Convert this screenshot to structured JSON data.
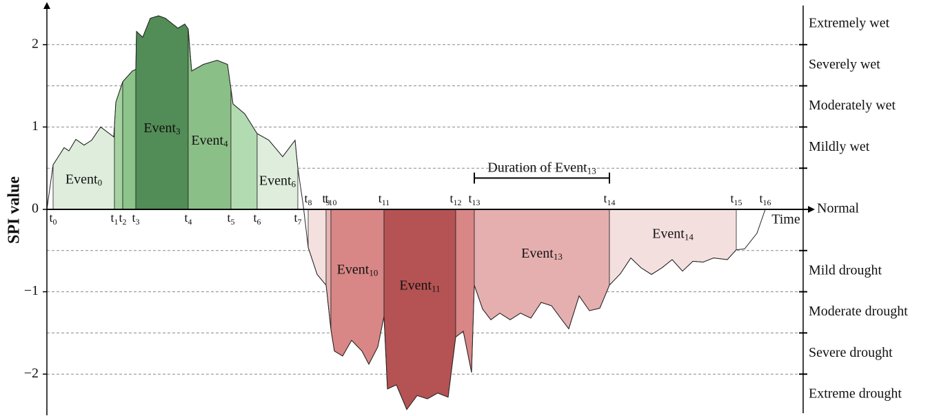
{
  "chart_data": {
    "type": "area",
    "y_label": "SPI value",
    "x_label": "Time",
    "xlim": [
      0,
      110
    ],
    "ylim": [
      -2.5,
      2.5
    ],
    "yticks": [
      {
        "value": -2,
        "label": "−2"
      },
      {
        "value": -1,
        "label": "−1"
      },
      0,
      1,
      2
    ],
    "class_bounds": [
      -2,
      -1.5,
      -1,
      -0.5,
      0.5,
      1,
      1.5,
      2
    ],
    "classes": [
      {
        "name": "Extremely wet",
        "min": 2,
        "max": 2.5
      },
      {
        "name": "Severely wet",
        "min": 1.5,
        "max": 2
      },
      {
        "name": "Moderately wet",
        "min": 1,
        "max": 1.5
      },
      {
        "name": "Mildly wet",
        "min": 0.5,
        "max": 1
      },
      {
        "name": "Normal",
        "min": -0.5,
        "max": 0.5
      },
      {
        "name": "Mild drought",
        "min": -1,
        "max": -0.5
      },
      {
        "name": "Moderate drought",
        "min": -1.5,
        "max": -1
      },
      {
        "name": "Severe drought",
        "min": -2,
        "max": -1.5
      },
      {
        "name": "Extreme drought",
        "min": -2.5,
        "max": -2
      }
    ],
    "curve": {
      "x": [
        0,
        0.9,
        2.5,
        3.2,
        4.2,
        5.4,
        6.5,
        7.8,
        9.7,
        10,
        11,
        12.4,
        12.9,
        13,
        13.9,
        15,
        16.2,
        17.2,
        19,
        20,
        20.5,
        21,
        22.7,
        24.7,
        26.2,
        27,
        28.7,
        30.5,
        32.2,
        34.2,
        36,
        36.4,
        37.2,
        37.9,
        39.2,
        40.5,
        41.2,
        41.7,
        42.9,
        44.2,
        45.7,
        46.7,
        48,
        48.9,
        49.4,
        50.7,
        52.2,
        53.7,
        55.2,
        56.7,
        58.2,
        59.3,
        60.4,
        61.6,
        62,
        63.2,
        64.4,
        65.7,
        67.2,
        68.7,
        70.2,
        71.7,
        73.2,
        74.7,
        75.7,
        77.2,
        78.7,
        80.2,
        81.6,
        83.2,
        84.7,
        86.2,
        87.7,
        89.2,
        90.7,
        92.2,
        93.7,
        95.2,
        96.7,
        98.7,
        100,
        101.2,
        103,
        104.2
      ],
      "y": [
        0,
        0.54,
        0.75,
        0.71,
        0.85,
        0.78,
        0.84,
        1.0,
        0.88,
        1.3,
        1.55,
        1.68,
        1.7,
        2.16,
        2.09,
        2.32,
        2.35,
        2.32,
        2.2,
        2.25,
        2.19,
        1.68,
        1.76,
        1.81,
        1.76,
        1.28,
        1.16,
        0.92,
        0.84,
        0.64,
        0.84,
        0.5,
        0.04,
        -0.46,
        -0.79,
        -0.92,
        -1.46,
        -1.72,
        -1.78,
        -1.59,
        -1.72,
        -1.88,
        -1.67,
        -1.3,
        -2.18,
        -2.13,
        -2.43,
        -2.26,
        -2.3,
        -2.23,
        -2.28,
        -1.55,
        -1.48,
        -1.98,
        -0.92,
        -1.21,
        -1.34,
        -1.26,
        -1.34,
        -1.26,
        -1.32,
        -1.13,
        -1.17,
        -1.34,
        -1.45,
        -1.05,
        -1.23,
        -1.2,
        -0.92,
        -0.78,
        -0.59,
        -0.71,
        -0.79,
        -0.71,
        -0.61,
        -0.75,
        -0.63,
        -0.64,
        -0.59,
        -0.61,
        -0.49,
        -0.48,
        -0.29,
        0
      ]
    },
    "times": [
      {
        "symbol": "t",
        "sub": 0,
        "x": 0.9
      },
      {
        "symbol": "t",
        "sub": 1,
        "x": 9.8
      },
      {
        "symbol": "t",
        "sub": 2,
        "x": 11
      },
      {
        "symbol": "t",
        "sub": 3,
        "x": 12.9
      },
      {
        "symbol": "t",
        "sub": 4,
        "x": 20.5
      },
      {
        "symbol": "t",
        "sub": 5,
        "x": 26.7
      },
      {
        "symbol": "t",
        "sub": 6,
        "x": 30.5
      },
      {
        "symbol": "t",
        "sub": 7,
        "x": 36.4
      },
      {
        "symbol": "t",
        "sub": 8,
        "x": 37.9
      },
      {
        "symbol": "t",
        "sub": 9,
        "x": 40.5
      },
      {
        "symbol": "t",
        "sub": 10,
        "x": 41.2
      },
      {
        "symbol": "t",
        "sub": 11,
        "x": 48.9
      },
      {
        "symbol": "t",
        "sub": 12,
        "x": 59.3
      },
      {
        "symbol": "t",
        "sub": 13,
        "x": 62
      },
      {
        "symbol": "t",
        "sub": 14,
        "x": 81.6
      },
      {
        "symbol": "t",
        "sub": 15,
        "x": 100
      },
      {
        "symbol": "t",
        "sub": 16,
        "x": 104.2
      }
    ],
    "segments": [
      {
        "start": 0.9,
        "end": 9.8,
        "color": "#deeddc",
        "name": "Event",
        "sub": 0
      },
      {
        "start": 9.8,
        "end": 11,
        "color": "#a6d2a2"
      },
      {
        "start": 11,
        "end": 12.9,
        "color": "#8cc48a"
      },
      {
        "start": 12.9,
        "end": 20.5,
        "color": "#528c56",
        "name": "Event",
        "sub": 3
      },
      {
        "start": 20.5,
        "end": 26.7,
        "color": "#8bbf88",
        "name": "Event",
        "sub": 4
      },
      {
        "start": 26.7,
        "end": 30.5,
        "color": "#b3dbb1"
      },
      {
        "start": 30.5,
        "end": 36.4,
        "color": "#deeddc",
        "name": "Event",
        "sub": 6
      },
      {
        "start": 37.9,
        "end": 40.5,
        "color": "#f5e0e0"
      },
      {
        "start": 40.5,
        "end": 41.2,
        "color": "#e6b3b3"
      },
      {
        "start": 41.2,
        "end": 48.9,
        "color": "#d98686",
        "name": "Event",
        "sub": 10
      },
      {
        "start": 48.9,
        "end": 59.3,
        "color": "#b55253",
        "name": "Event",
        "sub": 11
      },
      {
        "start": 59.3,
        "end": 62,
        "color": "#d98686"
      },
      {
        "start": 62,
        "end": 81.6,
        "color": "#e6afaf",
        "name": "Event",
        "sub": 13
      },
      {
        "start": 81.6,
        "end": 100,
        "color": "#f4dfdf",
        "name": "Event",
        "sub": 14
      }
    ],
    "duration": {
      "label": "Duration of Event",
      "sub": 13,
      "from": 62,
      "to": 81.6,
      "y": 0.38
    }
  }
}
